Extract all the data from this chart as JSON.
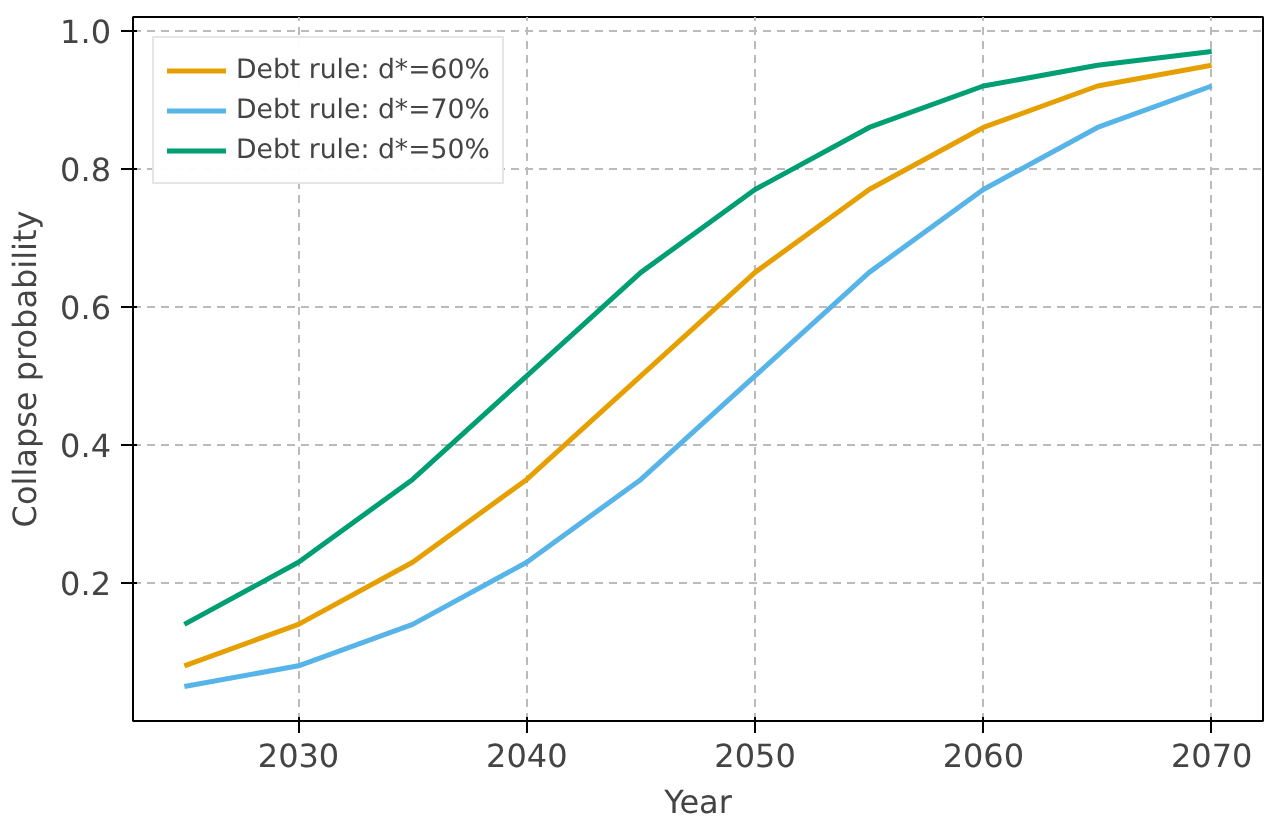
{
  "chart_data": {
    "type": "line",
    "xlabel": "Year",
    "ylabel": "Collapse probability",
    "x": [
      2025,
      2030,
      2035,
      2040,
      2045,
      2050,
      2055,
      2060,
      2065,
      2070
    ],
    "series": [
      {
        "name": "Debt rule: d*=60%",
        "color": "#e69f00",
        "values": [
          0.08,
          0.14,
          0.23,
          0.35,
          0.5,
          0.65,
          0.77,
          0.86,
          0.92,
          0.95
        ]
      },
      {
        "name": "Debt rule: d*=70%",
        "color": "#56b4e9",
        "values": [
          0.05,
          0.08,
          0.14,
          0.23,
          0.35,
          0.5,
          0.65,
          0.77,
          0.86,
          0.92
        ]
      },
      {
        "name": "Debt rule: d*=50%",
        "color": "#009e73",
        "values": [
          0.14,
          0.23,
          0.35,
          0.5,
          0.65,
          0.77,
          0.86,
          0.92,
          0.95,
          0.97
        ]
      }
    ],
    "xlim": [
      2022.75,
      2072.25
    ],
    "ylim": [
      0.0,
      1.02
    ],
    "xticks": [
      2030,
      2040,
      2050,
      2060,
      2070
    ],
    "yticks": [
      {
        "value": 0.2,
        "label": "0.2"
      },
      {
        "value": 0.4,
        "label": "0.4"
      },
      {
        "value": 0.6,
        "label": "0.6"
      },
      {
        "value": 0.8,
        "label": "0.8"
      },
      {
        "value": 1.0,
        "label": "1.0"
      }
    ],
    "grid": true,
    "legend": "top left",
    "line_style": "solid",
    "marker": "none"
  }
}
